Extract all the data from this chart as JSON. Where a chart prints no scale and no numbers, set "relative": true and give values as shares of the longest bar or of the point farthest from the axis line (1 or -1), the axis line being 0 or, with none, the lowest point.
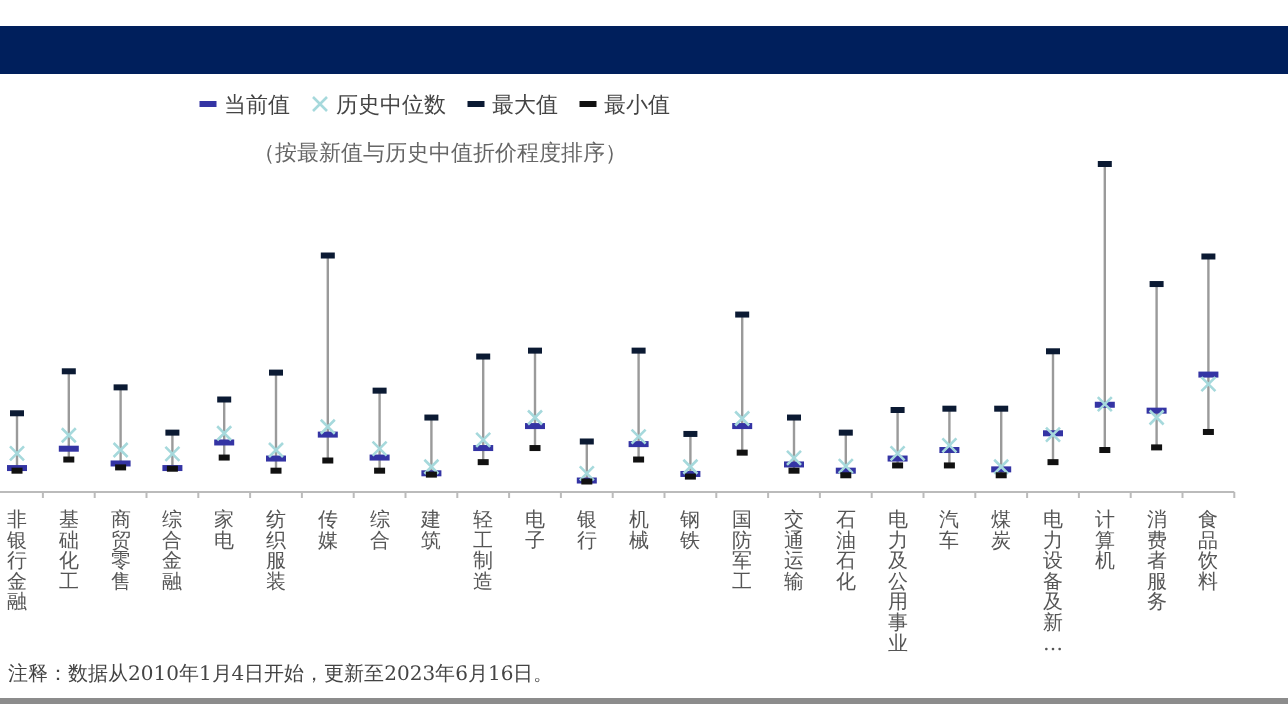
{
  "chart_data": {
    "type": "scatter",
    "relative": true,
    "subtitle": "（按最新值与历史中值折价程度排序）",
    "legend": "top",
    "categories": [
      "非银行金融",
      "基础化工",
      "商贸零售",
      "综合金融",
      "家电",
      "纺织服装",
      "传媒",
      "综合",
      "建筑",
      "轻工制造",
      "电子",
      "银行",
      "机械",
      "钢铁",
      "国防军工",
      "交通运输",
      "石油石化",
      "电力及公用事业",
      "汽车",
      "煤炭",
      "电力设备及新…",
      "计算机",
      "消费者服务",
      "食品饮料"
    ],
    "series": [
      {
        "name": "当前值",
        "color": "#3434a4",
        "values": [
          0.073,
          0.132,
          0.087,
          0.073,
          0.151,
          0.102,
          0.175,
          0.105,
          0.057,
          0.134,
          0.201,
          0.035,
          0.146,
          0.055,
          0.201,
          0.084,
          0.065,
          0.102,
          0.128,
          0.069,
          0.179,
          0.266,
          0.248,
          0.358
        ]
      },
      {
        "name": "历史中位数",
        "color": "#a6d9dc",
        "marker": "cross",
        "values": [
          0.118,
          0.173,
          0.128,
          0.116,
          0.179,
          0.128,
          0.199,
          0.132,
          0.077,
          0.159,
          0.227,
          0.057,
          0.169,
          0.077,
          0.224,
          0.104,
          0.079,
          0.118,
          0.142,
          0.077,
          0.175,
          0.268,
          0.227,
          0.329
        ]
      },
      {
        "name": "最大值",
        "color": "#0b1a33",
        "values": [
          0.24,
          0.368,
          0.319,
          0.181,
          0.282,
          0.364,
          0.721,
          0.309,
          0.227,
          0.413,
          0.431,
          0.154,
          0.431,
          0.177,
          0.541,
          0.227,
          0.181,
          0.25,
          0.254,
          0.254,
          0.429,
          1,
          0.634,
          0.718
        ]
      },
      {
        "name": "最小值",
        "color": "#111111",
        "values": [
          0.065,
          0.099,
          0.075,
          0.071,
          0.105,
          0.065,
          0.096,
          0.065,
          0.053,
          0.091,
          0.134,
          0.032,
          0.099,
          0.047,
          0.12,
          0.065,
          0.051,
          0.081,
          0.081,
          0.051,
          0.091,
          0.128,
          0.136,
          0.183
        ]
      }
    ],
    "annotations": [
      "注释：数据从2010年1月4日开始，更新至2023年6月16日。"
    ]
  }
}
